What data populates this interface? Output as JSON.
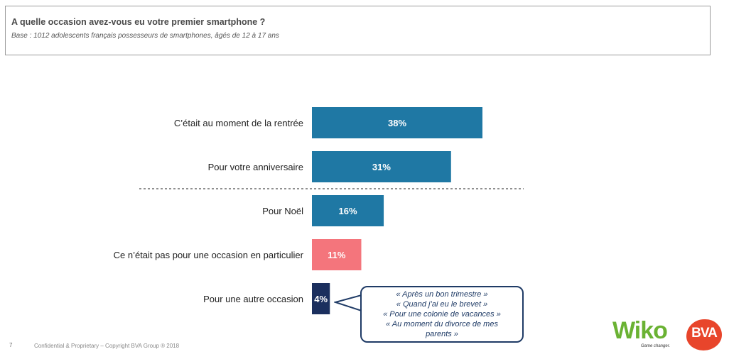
{
  "header": {
    "title": "A quelle occasion avez-vous eu votre premier smartphone ?",
    "subtitle": "Base : 1012 adolescents français possesseurs de smartphones, âgés de 12 à 17 ans"
  },
  "chart_data": {
    "type": "bar",
    "orientation": "horizontal",
    "categories": [
      "C’était au moment de la rentrée",
      "Pour votre anniversaire",
      "Pour Noël",
      "Ce n’était pas pour une occasion en particulier",
      "Pour une autre occasion"
    ],
    "values": [
      38,
      31,
      16,
      11,
      4
    ],
    "value_labels": [
      "38%",
      "31%",
      "16%",
      "11%",
      "4%"
    ],
    "colors": [
      "#1f78a4",
      "#1f78a4",
      "#1f78a4",
      "#f4757c",
      "#1b2f5e"
    ],
    "xlim": [
      0,
      38
    ],
    "divider_after_index": 1,
    "grid": false,
    "legend": "none"
  },
  "callout": {
    "lines": [
      "« Après un bon trimestre »",
      "« Quand j’ai eu le brevet »",
      "« Pour une colonie de vacances »",
      "« Au moment du divorce de mes",
      "parents »"
    ],
    "border_color": "#1f3b66"
  },
  "footer": {
    "page_number": "7",
    "copyright": "Confidential & Proprietary – Copyright BVA Group ®  2018"
  },
  "logos": {
    "wiko": "Wiko",
    "wiko_tagline": "Game changer.",
    "bva": "BVA"
  }
}
